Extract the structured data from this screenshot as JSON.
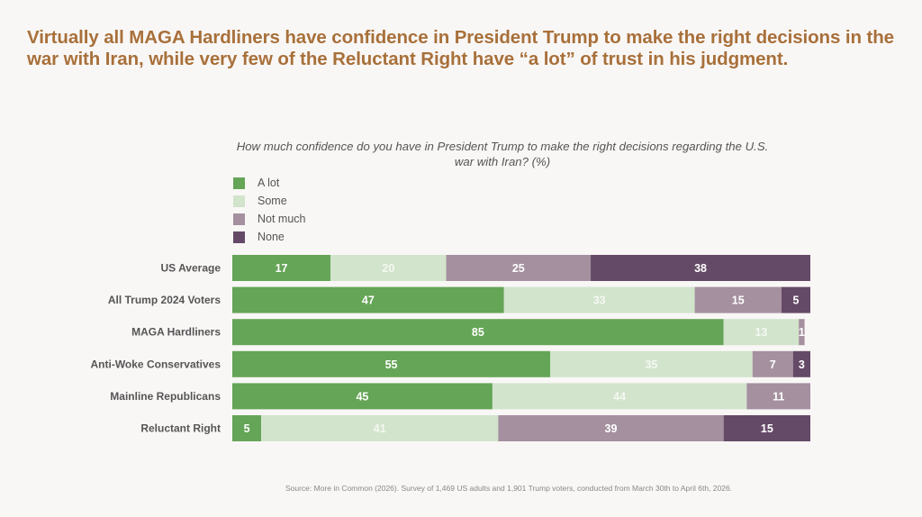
{
  "headline": "Virtually all MAGA Hardliners have confidence in President Trump to make the right decisions in the war with Iran, while very few of the Reluctant Right have “a lot” of trust in his judgment.",
  "source": "Source: More in Common (2026). Survey of 1,469 US adults and 1,901 Trump voters, conducted from March 30th to April 6th, 2026.",
  "chart_data": {
    "type": "bar",
    "orientation": "horizontal",
    "stacked": true,
    "title": "How much confidence do you have in President Trump to make the right decisions regarding the U.S. war with Iran? (%)",
    "xlabel": "",
    "ylabel": "",
    "xlim": [
      0,
      100
    ],
    "grid": false,
    "legend_position": "top-left",
    "categories": [
      "US Average",
      "All Trump 2024 Voters",
      "MAGA Hardliners",
      "Anti-Woke Conservatives",
      "Mainline Republicans",
      "Reluctant Right"
    ],
    "series": [
      {
        "name": "A lot",
        "color": "#65a557",
        "label_color": "#ffffff",
        "values": [
          17,
          47,
          85,
          55,
          45,
          5
        ]
      },
      {
        "name": "Some",
        "color": "#d2e4cc",
        "label_color": "#f4f8f2",
        "values": [
          20,
          33,
          13,
          35,
          44,
          41
        ]
      },
      {
        "name": "Not much",
        "color": "#a4909f",
        "label_color": "#ffffff",
        "values": [
          25,
          15,
          1,
          7,
          11,
          39
        ]
      },
      {
        "name": "None",
        "color": "#654a67",
        "label_color": "#ffffff",
        "values": [
          38,
          5,
          0,
          3,
          0,
          15
        ]
      }
    ]
  }
}
